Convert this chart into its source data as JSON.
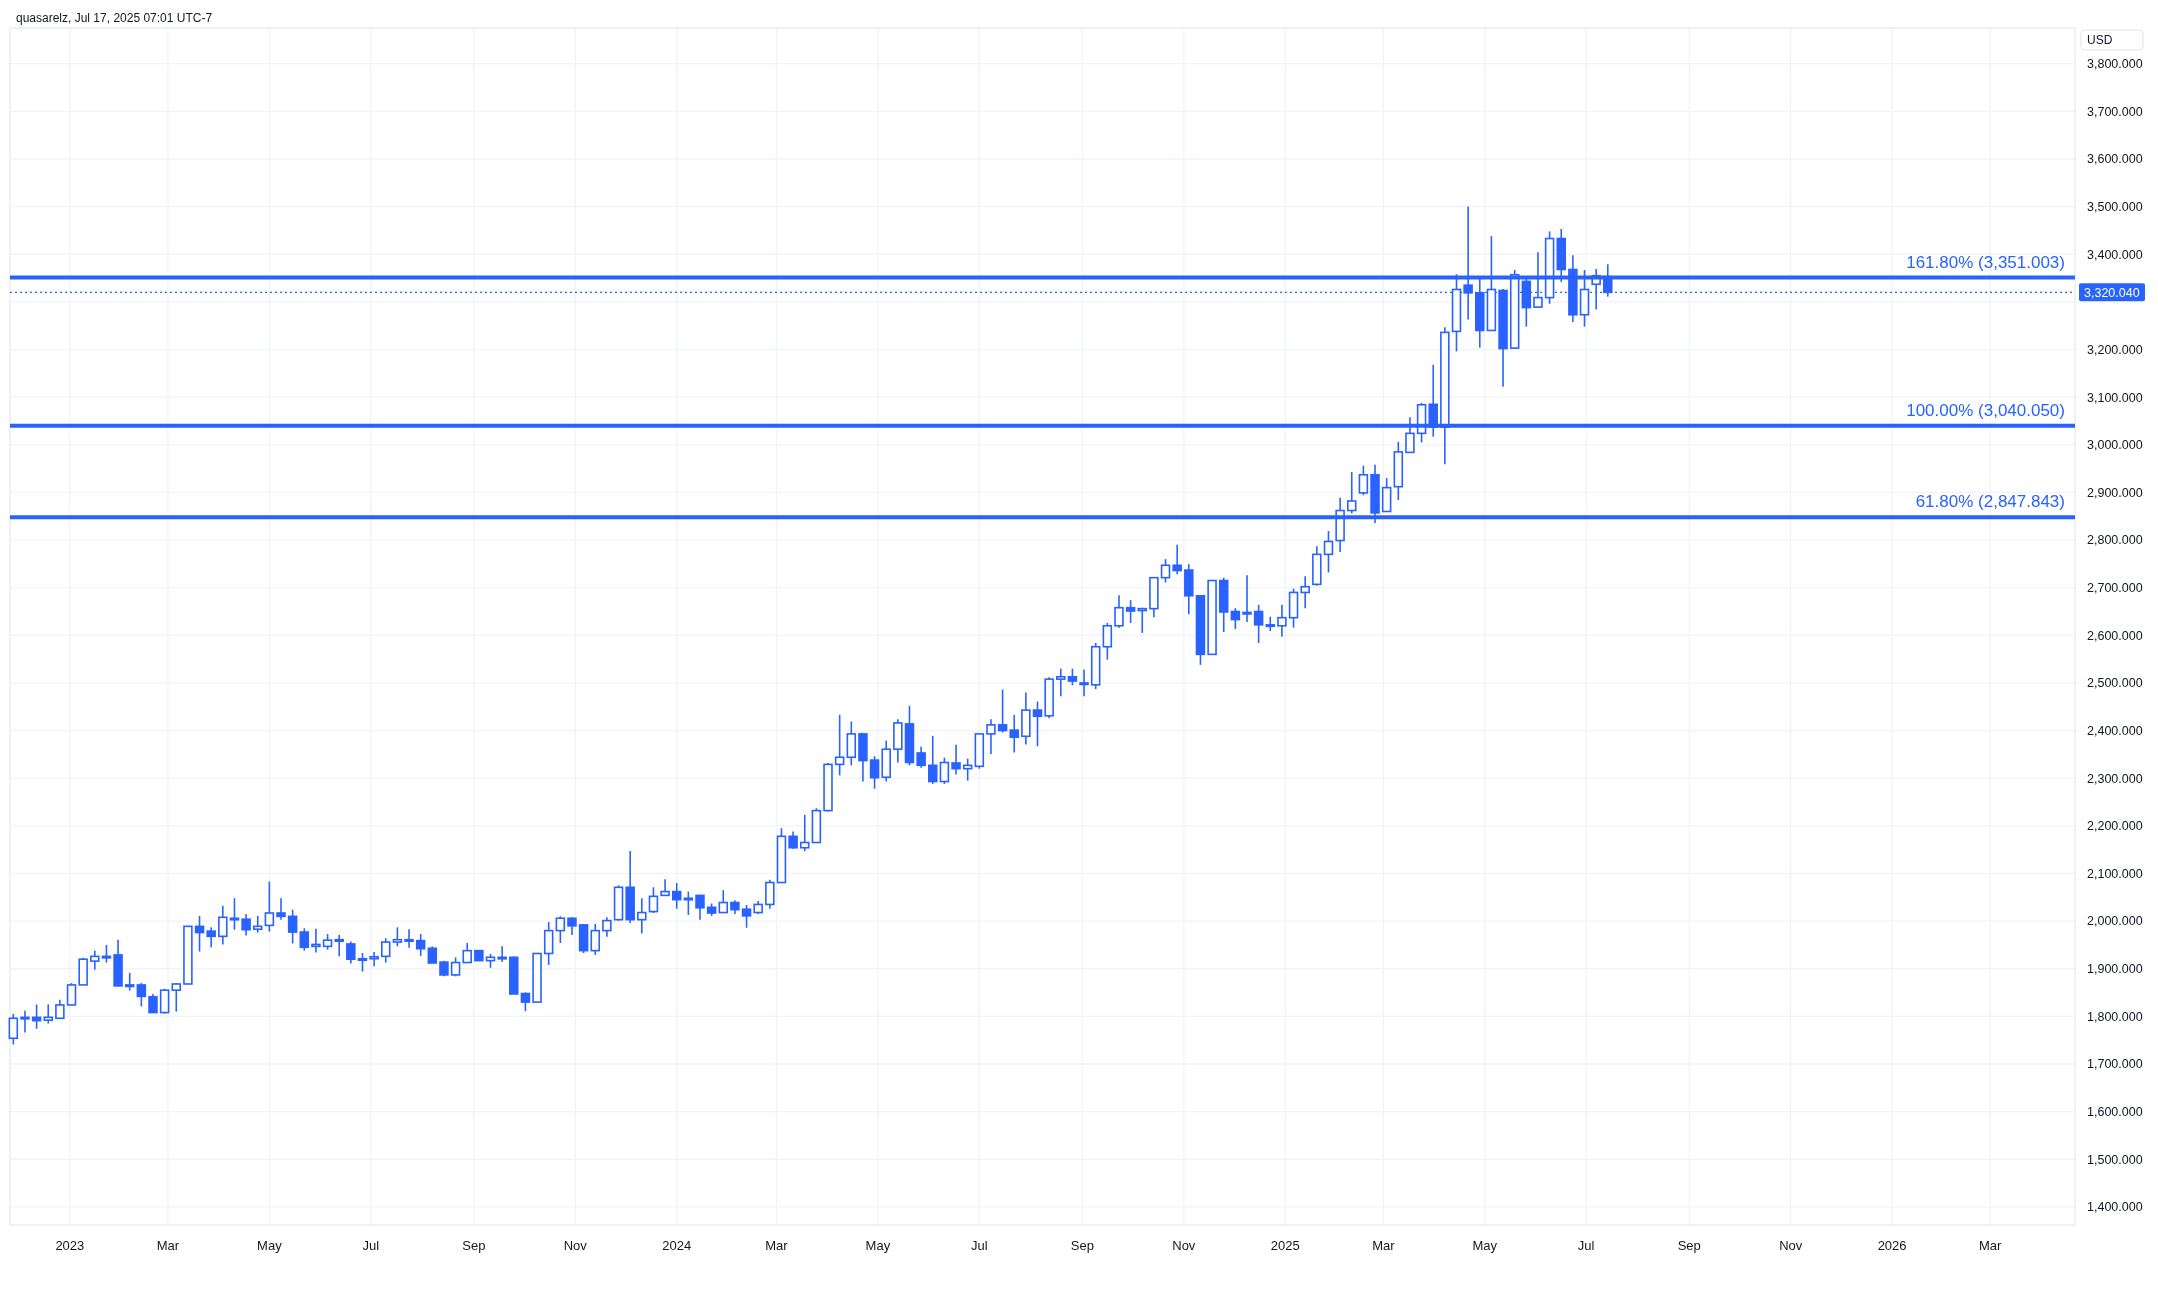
{
  "chart_data": {
    "type": "candlestick",
    "ylabel": "USD",
    "annotations": [
      "quasarelz, Jul 17, 2025 07:01 UTC-7"
    ],
    "grid": true,
    "xlim": [
      "2022-11-26",
      "2026-04-21"
    ],
    "xticks": [
      {
        "value": "2023-01-01",
        "label": "2023"
      },
      {
        "value": "2023-03-01",
        "label": "Mar"
      },
      {
        "value": "2023-05-01",
        "label": "May"
      },
      {
        "value": "2023-07-01",
        "label": "Jul"
      },
      {
        "value": "2023-09-01",
        "label": "Sep"
      },
      {
        "value": "2023-11-01",
        "label": "Nov"
      },
      {
        "value": "2024-01-01",
        "label": "2024"
      },
      {
        "value": "2024-03-01",
        "label": "Mar"
      },
      {
        "value": "2024-05-01",
        "label": "May"
      },
      {
        "value": "2024-07-01",
        "label": "Jul"
      },
      {
        "value": "2024-09-01",
        "label": "Sep"
      },
      {
        "value": "2024-11-01",
        "label": "Nov"
      },
      {
        "value": "2025-01-01",
        "label": "2025"
      },
      {
        "value": "2025-03-01",
        "label": "Mar"
      },
      {
        "value": "2025-05-01",
        "label": "May"
      },
      {
        "value": "2025-07-01",
        "label": "Jul"
      },
      {
        "value": "2025-09-01",
        "label": "Sep"
      },
      {
        "value": "2025-11-01",
        "label": "Nov"
      },
      {
        "value": "2026-01-01",
        "label": "2026"
      },
      {
        "value": "2026-03-01",
        "label": "Mar"
      }
    ],
    "ylim": [
      1362,
      3875
    ],
    "yticks": [
      {
        "value": 1400,
        "label": "1,400.000"
      },
      {
        "value": 1500,
        "label": "1,500.000"
      },
      {
        "value": 1600,
        "label": "1,600.000"
      },
      {
        "value": 1700,
        "label": "1,700.000"
      },
      {
        "value": 1800,
        "label": "1,800.000"
      },
      {
        "value": 1900,
        "label": "1,900.000"
      },
      {
        "value": 2000,
        "label": "2,000.000"
      },
      {
        "value": 2100,
        "label": "2,100.000"
      },
      {
        "value": 2200,
        "label": "2,200.000"
      },
      {
        "value": 2300,
        "label": "2,300.000"
      },
      {
        "value": 2400,
        "label": "2,400.000"
      },
      {
        "value": 2500,
        "label": "2,500.000"
      },
      {
        "value": 2600,
        "label": "2,600.000"
      },
      {
        "value": 2700,
        "label": "2,700.000"
      },
      {
        "value": 2800,
        "label": "2,800.000"
      },
      {
        "value": 2900,
        "label": "2,900.000"
      },
      {
        "value": 3000,
        "label": "3,000.000"
      },
      {
        "value": 3100,
        "label": "3,100.000"
      },
      {
        "value": 3200,
        "label": "3,200.000"
      },
      {
        "value": 3300,
        "label": null
      },
      {
        "value": 3400,
        "label": "3,400.000"
      },
      {
        "value": 3500,
        "label": "3,500.000"
      },
      {
        "value": 3600,
        "label": "3,600.000"
      },
      {
        "value": 3700,
        "label": "3,700.000"
      },
      {
        "value": 3800,
        "label": "3,800.000"
      }
    ],
    "ref_lines": [
      {
        "axis": "y",
        "value": 3351.003,
        "label": "161.80% (3,351.003)",
        "color": "#2962ff"
      },
      {
        "axis": "y",
        "value": 3040.05,
        "label": "100.00% (3,040.050)",
        "color": "#2962ff"
      },
      {
        "axis": "y",
        "value": 2847.843,
        "label": "61.80% (2,847.843)",
        "color": "#2962ff"
      },
      {
        "axis": "y",
        "value": 3320.04,
        "label": "3,320.040",
        "color": "#2962ff",
        "line_style": "dotted"
      }
    ],
    "x": [
      "2022-11-28",
      "2022-12-05",
      "2022-12-12",
      "2022-12-19",
      "2022-12-26",
      "2023-01-02",
      "2023-01-09",
      "2023-01-16",
      "2023-01-23",
      "2023-01-30",
      "2023-02-06",
      "2023-02-13",
      "2023-02-20",
      "2023-02-27",
      "2023-03-06",
      "2023-03-13",
      "2023-03-20",
      "2023-03-27",
      "2023-04-03",
      "2023-04-10",
      "2023-04-17",
      "2023-04-24",
      "2023-05-01",
      "2023-05-08",
      "2023-05-15",
      "2023-05-22",
      "2023-05-29",
      "2023-06-05",
      "2023-06-12",
      "2023-06-19",
      "2023-06-26",
      "2023-07-03",
      "2023-07-10",
      "2023-07-17",
      "2023-07-24",
      "2023-07-31",
      "2023-08-07",
      "2023-08-14",
      "2023-08-21",
      "2023-08-28",
      "2023-09-04",
      "2023-09-11",
      "2023-09-18",
      "2023-09-25",
      "2023-10-02",
      "2023-10-09",
      "2023-10-16",
      "2023-10-23",
      "2023-10-30",
      "2023-11-06",
      "2023-11-13",
      "2023-11-20",
      "2023-11-27",
      "2023-12-04",
      "2023-12-11",
      "2023-12-18",
      "2023-12-25",
      "2024-01-01",
      "2024-01-08",
      "2024-01-15",
      "2024-01-22",
      "2024-01-29",
      "2024-02-05",
      "2024-02-12",
      "2024-02-19",
      "2024-02-26",
      "2024-03-04",
      "2024-03-11",
      "2024-03-18",
      "2024-03-25",
      "2024-04-01",
      "2024-04-08",
      "2024-04-15",
      "2024-04-22",
      "2024-04-29",
      "2024-05-06",
      "2024-05-13",
      "2024-05-20",
      "2024-05-27",
      "2024-06-03",
      "2024-06-10",
      "2024-06-17",
      "2024-06-24",
      "2024-07-01",
      "2024-07-08",
      "2024-07-15",
      "2024-07-22",
      "2024-07-29",
      "2024-08-05",
      "2024-08-12",
      "2024-08-19",
      "2024-08-26",
      "2024-09-02",
      "2024-09-09",
      "2024-09-16",
      "2024-09-23",
      "2024-09-30",
      "2024-10-07",
      "2024-10-14",
      "2024-10-21",
      "2024-10-28",
      "2024-11-04",
      "2024-11-11",
      "2024-11-18",
      "2024-11-25",
      "2024-12-02",
      "2024-12-09",
      "2024-12-16",
      "2024-12-23",
      "2024-12-30",
      "2025-01-06",
      "2025-01-13",
      "2025-01-20",
      "2025-01-27",
      "2025-02-03",
      "2025-02-10",
      "2025-02-17",
      "2025-02-24",
      "2025-03-03",
      "2025-03-10",
      "2025-03-17",
      "2025-03-24",
      "2025-03-31",
      "2025-04-07",
      "2025-04-14",
      "2025-04-21",
      "2025-04-28",
      "2025-05-05",
      "2025-05-12",
      "2025-05-19",
      "2025-05-26",
      "2025-06-02",
      "2025-06-09",
      "2025-06-16",
      "2025-06-23",
      "2025-06-30",
      "2025-07-07",
      "2025-07-14"
    ],
    "series": [
      {
        "color": "#2962ff",
        "ohlc": [
          [
            1754,
            1805,
            1741,
            1796
          ],
          [
            1798,
            1812,
            1766,
            1798
          ],
          [
            1798,
            1825,
            1774,
            1791
          ],
          [
            1792,
            1825,
            1785,
            1798
          ],
          [
            1796,
            1835,
            1796,
            1824
          ],
          [
            1824,
            1870,
            1824,
            1866
          ],
          [
            1866,
            1923,
            1866,
            1920
          ],
          [
            1916,
            1938,
            1898,
            1926
          ],
          [
            1926,
            1950,
            1913,
            1926
          ],
          [
            1929,
            1961,
            1863,
            1864
          ],
          [
            1864,
            1891,
            1854,
            1866
          ],
          [
            1866,
            1870,
            1821,
            1842
          ],
          [
            1841,
            1847,
            1808,
            1808
          ],
          [
            1808,
            1858,
            1806,
            1855
          ],
          [
            1855,
            1870,
            1810,
            1868
          ],
          [
            1868,
            1989,
            1868,
            1989
          ],
          [
            1989,
            2011,
            1936,
            1976
          ],
          [
            1979,
            1987,
            1945,
            1968
          ],
          [
            1968,
            2032,
            1951,
            2008
          ],
          [
            2006,
            2048,
            1982,
            2003
          ],
          [
            2004,
            2015,
            1970,
            1982
          ],
          [
            1983,
            2011,
            1976,
            1989
          ],
          [
            1991,
            2083,
            1978,
            2017
          ],
          [
            2017,
            2048,
            2003,
            2010
          ],
          [
            2010,
            2024,
            1953,
            1977
          ],
          [
            1977,
            1985,
            1938,
            1945
          ],
          [
            1947,
            1984,
            1934,
            1951
          ],
          [
            1947,
            1973,
            1940,
            1960
          ],
          [
            1961,
            1971,
            1926,
            1958
          ],
          [
            1952,
            1957,
            1911,
            1920
          ],
          [
            1921,
            1933,
            1894,
            1921
          ],
          [
            1921,
            1935,
            1905,
            1925
          ],
          [
            1926,
            1964,
            1913,
            1956
          ],
          [
            1956,
            1987,
            1947,
            1961
          ],
          [
            1961,
            1983,
            1944,
            1959
          ],
          [
            1959,
            1973,
            1927,
            1942
          ],
          [
            1943,
            1947,
            1912,
            1912
          ],
          [
            1914,
            1917,
            1884,
            1887
          ],
          [
            1887,
            1924,
            1884,
            1913
          ],
          [
            1913,
            1954,
            1913,
            1938
          ],
          [
            1938,
            1938,
            1917,
            1917
          ],
          [
            1917,
            1931,
            1902,
            1924
          ],
          [
            1924,
            1947,
            1914,
            1924
          ],
          [
            1924,
            1926,
            1847,
            1847
          ],
          [
            1848,
            1850,
            1811,
            1830
          ],
          [
            1830,
            1932,
            1830,
            1932
          ],
          [
            1932,
            1998,
            1908,
            1980
          ],
          [
            1980,
            2010,
            1954,
            2006
          ],
          [
            2006,
            2008,
            1971,
            1990
          ],
          [
            1992,
            1994,
            1933,
            1938
          ],
          [
            1938,
            1994,
            1929,
            1980
          ],
          [
            1980,
            2008,
            1967,
            2001
          ],
          [
            2003,
            2075,
            2001,
            2071
          ],
          [
            2071,
            2147,
            1996,
            2003
          ],
          [
            2003,
            2048,
            1974,
            2018
          ],
          [
            2020,
            2071,
            2017,
            2052
          ],
          [
            2054,
            2088,
            2054,
            2062
          ],
          [
            2062,
            2080,
            2026,
            2045
          ],
          [
            2048,
            2062,
            2013,
            2045
          ],
          [
            2054,
            2055,
            2003,
            2028
          ],
          [
            2029,
            2037,
            2011,
            2017
          ],
          [
            2018,
            2065,
            2018,
            2039
          ],
          [
            2039,
            2044,
            2015,
            2024
          ],
          [
            2025,
            2034,
            1986,
            2011
          ],
          [
            2018,
            2042,
            2015,
            2035
          ],
          [
            2035,
            2087,
            2026,
            2081
          ],
          [
            2081,
            2195,
            2081,
            2178
          ],
          [
            2178,
            2188,
            2152,
            2154
          ],
          [
            2154,
            2223,
            2147,
            2165
          ],
          [
            2165,
            2237,
            2165,
            2232
          ],
          [
            2232,
            2332,
            2230,
            2329
          ],
          [
            2329,
            2433,
            2306,
            2344
          ],
          [
            2344,
            2419,
            2327,
            2393
          ],
          [
            2393,
            2393,
            2293,
            2337
          ],
          [
            2338,
            2346,
            2278,
            2301
          ],
          [
            2302,
            2379,
            2293,
            2361
          ],
          [
            2361,
            2424,
            2333,
            2416
          ],
          [
            2414,
            2452,
            2327,
            2333
          ],
          [
            2353,
            2366,
            2322,
            2327
          ],
          [
            2327,
            2389,
            2288,
            2293
          ],
          [
            2293,
            2343,
            2288,
            2333
          ],
          [
            2332,
            2370,
            2308,
            2320
          ],
          [
            2320,
            2341,
            2295,
            2327
          ],
          [
            2325,
            2393,
            2320,
            2393
          ],
          [
            2393,
            2424,
            2351,
            2412
          ],
          [
            2412,
            2486,
            2396,
            2400
          ],
          [
            2401,
            2433,
            2354,
            2386
          ],
          [
            2388,
            2480,
            2371,
            2443
          ],
          [
            2443,
            2461,
            2367,
            2430
          ],
          [
            2431,
            2512,
            2426,
            2508
          ],
          [
            2508,
            2530,
            2472,
            2513
          ],
          [
            2513,
            2530,
            2495,
            2504
          ],
          [
            2500,
            2528,
            2472,
            2497
          ],
          [
            2496,
            2584,
            2487,
            2576
          ],
          [
            2576,
            2626,
            2549,
            2620
          ],
          [
            2620,
            2684,
            2616,
            2658
          ],
          [
            2658,
            2674,
            2626,
            2651
          ],
          [
            2652,
            2658,
            2605,
            2656
          ],
          [
            2656,
            2721,
            2638,
            2721
          ],
          [
            2721,
            2760,
            2711,
            2747
          ],
          [
            2747,
            2790,
            2728,
            2736
          ],
          [
            2737,
            2749,
            2644,
            2683
          ],
          [
            2683,
            2683,
            2538,
            2560
          ],
          [
            2560,
            2715,
            2560,
            2715
          ],
          [
            2715,
            2721,
            2607,
            2649
          ],
          [
            2650,
            2657,
            2613,
            2633
          ],
          [
            2648,
            2726,
            2628,
            2648
          ],
          [
            2650,
            2664,
            2584,
            2622
          ],
          [
            2622,
            2639,
            2609,
            2622
          ],
          [
            2620,
            2664,
            2597,
            2637
          ],
          [
            2637,
            2698,
            2616,
            2690
          ],
          [
            2690,
            2724,
            2657,
            2702
          ],
          [
            2707,
            2787,
            2704,
            2770
          ],
          [
            2770,
            2819,
            2732,
            2797
          ],
          [
            2799,
            2889,
            2775,
            2862
          ],
          [
            2862,
            2943,
            2856,
            2882
          ],
          [
            2899,
            2956,
            2894,
            2937
          ],
          [
            2937,
            2958,
            2836,
            2857
          ],
          [
            2860,
            2930,
            2860,
            2910
          ],
          [
            2912,
            3006,
            2884,
            2985
          ],
          [
            2984,
            3058,
            2984,
            3024
          ],
          [
            3024,
            3088,
            3005,
            3084
          ],
          [
            3085,
            3168,
            3017,
            3037
          ],
          [
            3037,
            3247,
            2959,
            3236
          ],
          [
            3238,
            3358,
            3196,
            3326
          ],
          [
            3335,
            3500,
            3263,
            3319
          ],
          [
            3319,
            3349,
            3204,
            3240
          ],
          [
            3240,
            3438,
            3240,
            3326
          ],
          [
            3324,
            3327,
            3122,
            3202
          ],
          [
            3203,
            3367,
            3203,
            3357
          ],
          [
            3343,
            3351,
            3248,
            3288
          ],
          [
            3289,
            3404,
            3289,
            3309
          ],
          [
            3309,
            3448,
            3296,
            3433
          ],
          [
            3433,
            3453,
            3342,
            3368
          ],
          [
            3368,
            3398,
            3258,
            3273
          ],
          [
            3273,
            3367,
            3248,
            3326
          ],
          [
            3337,
            3369,
            3284,
            3355
          ],
          [
            3353,
            3379,
            3311,
            3320
          ]
        ]
      }
    ]
  }
}
